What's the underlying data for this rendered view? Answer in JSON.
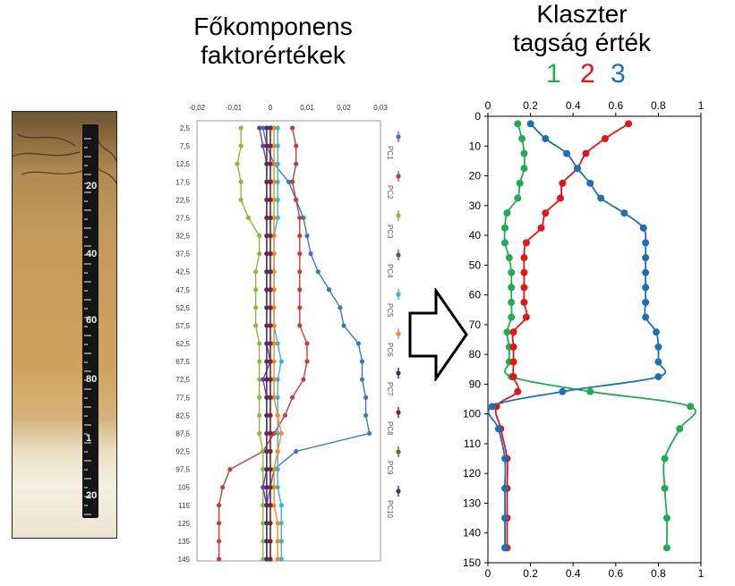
{
  "titles": {
    "pc_line1": "Főkomponens",
    "pc_line2": "faktorértékek",
    "cluster_line1": "Klaszter",
    "cluster_line2": "tagság érték",
    "cluster_num1": "1",
    "cluster_num2": "2",
    "cluster_num3": "3"
  },
  "colors": {
    "c1": "#22aa55",
    "c2": "#e01515",
    "c3": "#1f6fb5",
    "pc": [
      "#3a78c2",
      "#c0403a",
      "#93b53a",
      "#6d3fa3",
      "#3ab2d6",
      "#f08a2b",
      "#1f3a6b",
      "#8a1f25",
      "#4f7a22",
      "#4a2d7a"
    ]
  },
  "tape": {
    "labels": [
      "20",
      "40",
      "60",
      "80",
      "1",
      "20"
    ]
  },
  "chart_data": [
    {
      "type": "line",
      "orientation": "horizontal-values",
      "xlim": [
        -0.02,
        0.03
      ],
      "xticks": [
        "-0,02",
        "-0,01",
        "0",
        "0,01",
        "0,02",
        "0,03"
      ],
      "depth_labels": [
        "2,5",
        "7,5",
        "12,5",
        "17,5",
        "22,5",
        "27,5",
        "32,5",
        "37,5",
        "42,5",
        "47,5",
        "52,5",
        "57,5",
        "62,5",
        "67,5",
        "72,5",
        "77,5",
        "82,5",
        "87,5",
        "92,5",
        "97,5",
        "105",
        "115",
        "125",
        "135",
        "145"
      ],
      "series": [
        {
          "name": "PC1",
          "values": [
            -0.002,
            -0.001,
            0.001,
            0.005,
            0.007,
            0.009,
            0.01,
            0.011,
            0.013,
            0.016,
            0.019,
            0.02,
            0.024,
            0.025,
            0.025,
            0.026,
            0.026,
            0.027,
            0.007,
            0.001,
            0.0,
            -0.001,
            -0.001,
            -0.001,
            -0.001
          ]
        },
        {
          "name": "PC2",
          "values": [
            0.006,
            0.007,
            0.007,
            0.006,
            0.007,
            0.008,
            0.008,
            0.008,
            0.008,
            0.008,
            0.008,
            0.008,
            0.01,
            0.01,
            0.009,
            0.006,
            0.004,
            0.001,
            -0.002,
            -0.011,
            -0.013,
            -0.014,
            -0.014,
            -0.014,
            -0.014
          ]
        },
        {
          "name": "PC3",
          "values": [
            -0.008,
            -0.008,
            -0.009,
            -0.008,
            -0.008,
            -0.006,
            -0.003,
            -0.003,
            -0.004,
            -0.004,
            -0.004,
            -0.004,
            -0.003,
            -0.003,
            -0.003,
            -0.003,
            -0.003,
            -0.003,
            -0.002,
            -0.002,
            -0.002,
            -0.002,
            -0.002,
            -0.002,
            -0.002
          ]
        },
        {
          "name": "PC4",
          "values": [
            -0.003,
            -0.002,
            -0.001,
            -0.001,
            -0.001,
            -0.001,
            -0.001,
            -0.001,
            -0.001,
            -0.001,
            -0.001,
            -0.001,
            -0.001,
            0.0,
            -0.002,
            -0.001,
            -0.001,
            -0.001,
            -0.001,
            -0.001,
            -0.002,
            -0.001,
            -0.001,
            -0.001,
            -0.001
          ]
        },
        {
          "name": "PC5",
          "values": [
            0.002,
            0.002,
            0.002,
            0.002,
            0.002,
            0.002,
            0.001,
            0.001,
            0.001,
            0.001,
            0.001,
            0.001,
            0.002,
            0.003,
            0.002,
            0.002,
            0.002,
            0.002,
            0.002,
            0.002,
            0.002,
            0.003,
            0.003,
            0.003,
            0.003
          ]
        },
        {
          "name": "PC6",
          "values": [
            0.001,
            0.001,
            0.001,
            0.001,
            0.001,
            0.001,
            0.001,
            0.001,
            0.001,
            0.001,
            0.001,
            0.001,
            0.001,
            0.001,
            0.001,
            0.001,
            0.002,
            0.003,
            0.002,
            0.001,
            0.001,
            0.001,
            0.002,
            0.002,
            0.002
          ]
        },
        {
          "name": "PC7",
          "values": [
            0.0,
            0.0,
            0.0,
            0.0,
            0.0,
            0.0,
            0.0,
            0.0,
            0.0,
            0.0,
            0.0,
            0.0,
            0.0,
            0.0,
            0.0,
            0.0,
            0.0,
            0.0,
            0.0,
            0.0,
            0.0,
            0.0,
            0.0,
            0.0,
            0.0
          ]
        },
        {
          "name": "PC8",
          "values": [
            0.0,
            0.0,
            0.0,
            0.0,
            0.0,
            0.0,
            0.0,
            0.0,
            0.0,
            0.0,
            0.0,
            0.0,
            0.0,
            0.0,
            0.0,
            0.0,
            0.0,
            0.0,
            0.0,
            0.0,
            0.0,
            0.0,
            0.0,
            0.0,
            0.0
          ]
        },
        {
          "name": "PC9",
          "values": [
            -0.001,
            -0.001,
            -0.001,
            -0.001,
            -0.001,
            -0.001,
            -0.001,
            -0.001,
            -0.001,
            -0.001,
            -0.001,
            -0.001,
            -0.001,
            -0.001,
            -0.001,
            -0.001,
            -0.001,
            -0.001,
            -0.001,
            -0.001,
            -0.001,
            -0.001,
            -0.001,
            -0.001,
            -0.001
          ]
        },
        {
          "name": "PC10",
          "values": [
            -0.001,
            -0.001,
            -0.001,
            -0.001,
            -0.001,
            -0.001,
            -0.001,
            -0.001,
            -0.001,
            -0.001,
            -0.001,
            -0.001,
            -0.001,
            -0.001,
            -0.001,
            -0.001,
            -0.001,
            -0.001,
            -0.001,
            -0.001,
            -0.001,
            -0.001,
            -0.001,
            -0.001,
            -0.001
          ]
        }
      ]
    },
    {
      "type": "line",
      "orientation": "horizontal-values",
      "xlim": [
        0,
        1
      ],
      "ylim": [
        150,
        0
      ],
      "xticks": [
        "0",
        "0.2",
        "0.4",
        "0.6",
        "0.8",
        "1"
      ],
      "yticks": [
        "0",
        "10",
        "20",
        "30",
        "40",
        "50",
        "60",
        "70",
        "80",
        "90",
        "100",
        "110",
        "120",
        "130",
        "140",
        "150"
      ],
      "depths": [
        2.5,
        7.5,
        12.5,
        17.5,
        22.5,
        27.5,
        32.5,
        37.5,
        42.5,
        47.5,
        52.5,
        57.5,
        62.5,
        67.5,
        72.5,
        77.5,
        82.5,
        87.5,
        92.5,
        97.5,
        105,
        115,
        125,
        135,
        145
      ],
      "series": [
        {
          "name": "1",
          "values": [
            0.14,
            0.16,
            0.17,
            0.17,
            0.15,
            0.14,
            0.09,
            0.08,
            0.08,
            0.1,
            0.11,
            0.11,
            0.11,
            0.11,
            0.09,
            0.1,
            0.1,
            0.11,
            0.48,
            0.95,
            0.9,
            0.83,
            0.83,
            0.84,
            0.84
          ]
        },
        {
          "name": "2",
          "values": [
            0.66,
            0.55,
            0.46,
            0.42,
            0.35,
            0.34,
            0.27,
            0.25,
            0.18,
            0.17,
            0.17,
            0.17,
            0.17,
            0.18,
            0.12,
            0.12,
            0.12,
            0.12,
            0.14,
            0.04,
            0.06,
            0.09,
            0.09,
            0.09,
            0.09
          ]
        },
        {
          "name": "3",
          "values": [
            0.2,
            0.27,
            0.37,
            0.42,
            0.48,
            0.53,
            0.64,
            0.73,
            0.74,
            0.74,
            0.74,
            0.74,
            0.74,
            0.74,
            0.79,
            0.8,
            0.8,
            0.8,
            0.35,
            0.02,
            0.05,
            0.08,
            0.08,
            0.08,
            0.08
          ]
        }
      ]
    }
  ]
}
